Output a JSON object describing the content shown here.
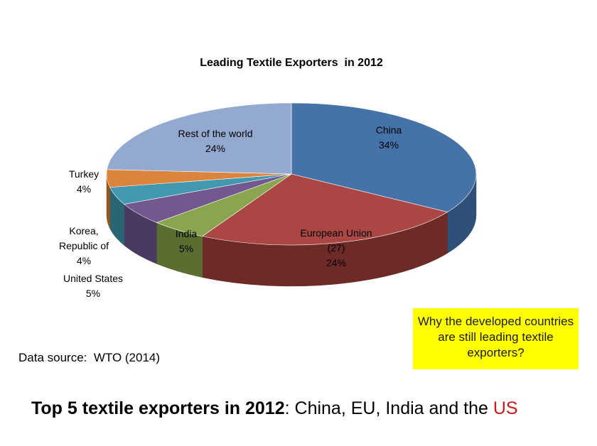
{
  "chart_data": {
    "type": "pie",
    "title": "Leading Textile Exporters  in 2012",
    "slices": [
      {
        "label": [
          "China",
          "34%"
        ],
        "value": 34,
        "color": "#4572a7",
        "side": "#2e4f78"
      },
      {
        "label": [
          "European Union",
          "(27)",
          "24%"
        ],
        "value": 24,
        "color": "#aa4643",
        "side": "#6e2a27"
      },
      {
        "label": [
          "India",
          "5%"
        ],
        "value": 5,
        "color": "#89a54e",
        "side": "#5a6e31"
      },
      {
        "label": [
          "United States",
          "5%"
        ],
        "value": 5,
        "color": "#71588f",
        "side": "#4a3960"
      },
      {
        "label": [
          "Korea,",
          "Republic of",
          "4%"
        ],
        "value": 4,
        "color": "#4198af",
        "side": "#2a6575"
      },
      {
        "label": [
          "Turkey",
          "4%"
        ],
        "value": 4,
        "color": "#db843d",
        "side": "#94561f"
      },
      {
        "label": [
          "Rest of the world",
          "24%"
        ],
        "value": 24,
        "color": "#93a9cf",
        "side": "#6a7fa3"
      }
    ],
    "legend": "none"
  },
  "source_note": "Data source:  WTO (2014)",
  "callout": "Why the developed countries are still leading textile exporters?",
  "bottom": {
    "lead": "Top 5 textile exporters in 2012",
    "rest": ": China, EU, India and the ",
    "accent": "US"
  }
}
